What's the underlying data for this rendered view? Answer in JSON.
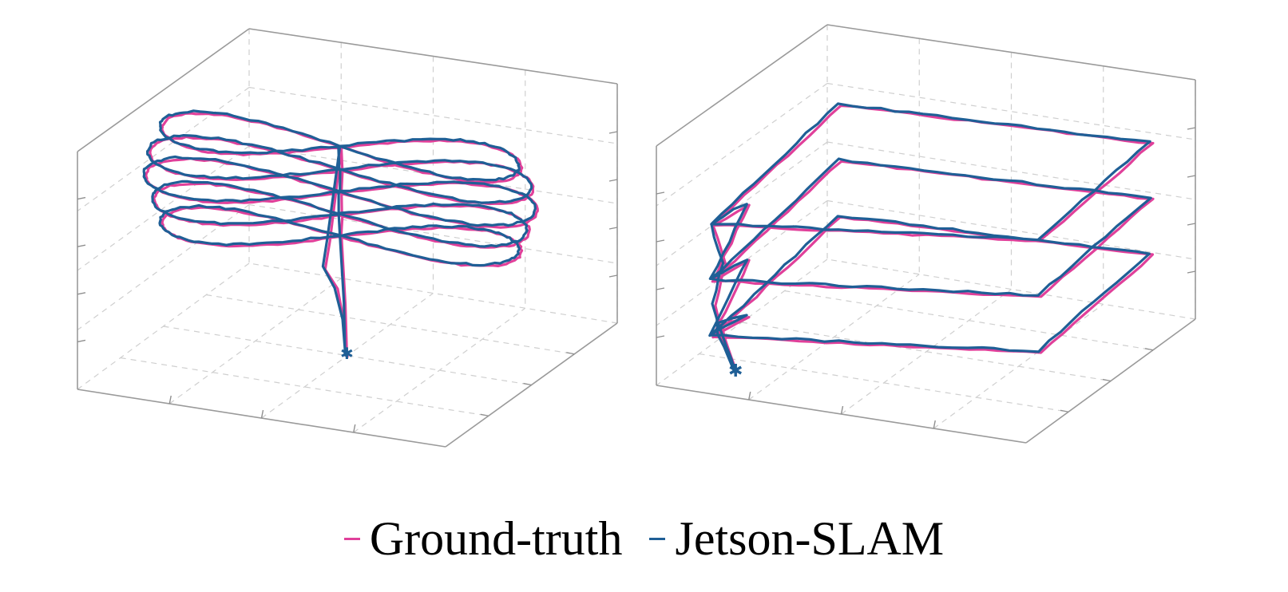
{
  "chart_data": [
    {
      "type": "line",
      "projection": "3d",
      "title": "",
      "xlabel": "",
      "ylabel": "",
      "zlabel": "",
      "grid": true,
      "description_shape": "figure-eight trajectory, repeated vertical loops",
      "series": [
        {
          "name": "Ground-truth",
          "color": "#e0409a"
        },
        {
          "name": "Jetson-SLAM",
          "color": "#1f5f96"
        }
      ]
    },
    {
      "type": "line",
      "projection": "3d",
      "title": "",
      "xlabel": "",
      "ylabel": "",
      "zlabel": "",
      "grid": true,
      "series": [
        {
          "name": "Ground-truth",
          "color": "#e0409a"
        },
        {
          "name": "Jetson-SLAM",
          "color": "#1f5f96"
        }
      ]
    }
  ],
  "legend": {
    "placement": "bottom",
    "entries": [
      {
        "label": "Ground-truth",
        "color": "#e0409a"
      },
      {
        "label": "Jetson-SLAM",
        "color": "#1f5f96"
      }
    ]
  }
}
